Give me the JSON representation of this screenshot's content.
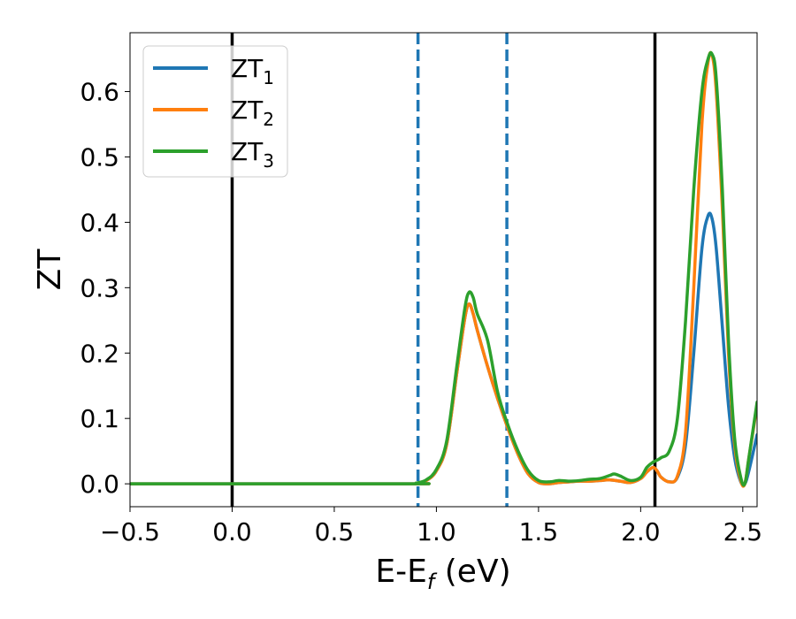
{
  "chart_data": {
    "type": "line",
    "xlabel": {
      "base": "E-E",
      "sub": "f",
      "suffix": " (eV)"
    },
    "ylabel": "ZT",
    "xlim": [
      -0.5,
      2.57
    ],
    "ylim": [
      -0.035,
      0.69
    ],
    "grid": false,
    "legend_position": "top-left",
    "x_ticks": [
      -0.5,
      0.0,
      0.5,
      1.0,
      1.5,
      2.0,
      2.5
    ],
    "x_tick_labels": [
      "−0.5",
      "0.0",
      "0.5",
      "1.0",
      "1.5",
      "2.0",
      "2.5"
    ],
    "y_ticks": [
      0.0,
      0.1,
      0.2,
      0.3,
      0.4,
      0.5,
      0.6
    ],
    "y_tick_labels": [
      "0.0",
      "0.1",
      "0.2",
      "0.3",
      "0.4",
      "0.5",
      "0.6"
    ],
    "vlines": [
      {
        "x": 0.0,
        "style": "solid",
        "color": "#000000"
      },
      {
        "x": 0.91,
        "style": "dashed",
        "color": "#1f77b4"
      },
      {
        "x": 1.345,
        "style": "dashed",
        "color": "#1f77b4"
      },
      {
        "x": 2.07,
        "style": "solid",
        "color": "#000000"
      }
    ],
    "series": [
      {
        "name": "ZT",
        "name_sub": "1",
        "color": "#1f77b4",
        "x": [
          -0.5,
          0.85,
          0.9,
          0.95,
          1.0,
          1.05,
          1.1,
          1.14,
          1.16,
          1.18,
          1.2,
          1.25,
          1.3,
          1.35,
          1.4,
          1.45,
          1.5,
          1.55,
          1.6,
          1.65,
          1.7,
          1.75,
          1.8,
          1.85,
          1.9,
          1.95,
          2.0,
          2.03,
          2.06,
          2.08,
          2.1,
          2.14,
          2.18,
          2.22,
          2.26,
          2.3,
          2.33,
          2.35,
          2.37,
          2.4,
          2.43,
          2.46,
          2.49,
          2.51,
          2.53,
          2.57
        ],
        "y": [
          0.0,
          0.0,
          0.001,
          0.005,
          0.02,
          0.06,
          0.17,
          0.255,
          0.275,
          0.26,
          0.235,
          0.18,
          0.13,
          0.085,
          0.045,
          0.015,
          0.002,
          0.0,
          0.002,
          0.003,
          0.004,
          0.004,
          0.005,
          0.006,
          0.004,
          0.002,
          0.008,
          0.018,
          0.025,
          0.02,
          0.01,
          0.003,
          0.01,
          0.06,
          0.2,
          0.36,
          0.41,
          0.405,
          0.36,
          0.24,
          0.12,
          0.04,
          0.003,
          0.0,
          0.02,
          0.075
        ]
      },
      {
        "name": "ZT",
        "name_sub": "2",
        "color": "#ff7f0e",
        "x": [
          -0.5,
          0.85,
          0.9,
          0.95,
          1.0,
          1.05,
          1.1,
          1.14,
          1.16,
          1.18,
          1.2,
          1.25,
          1.3,
          1.35,
          1.4,
          1.45,
          1.5,
          1.55,
          1.6,
          1.65,
          1.7,
          1.75,
          1.8,
          1.85,
          1.9,
          1.95,
          2.0,
          2.03,
          2.06,
          2.08,
          2.1,
          2.14,
          2.18,
          2.22,
          2.26,
          2.3,
          2.33,
          2.35,
          2.37,
          2.4,
          2.43,
          2.46,
          2.49,
          2.51,
          2.53,
          2.57
        ],
        "y": [
          0.0,
          0.0,
          0.001,
          0.005,
          0.02,
          0.06,
          0.17,
          0.255,
          0.275,
          0.26,
          0.235,
          0.18,
          0.13,
          0.085,
          0.045,
          0.015,
          0.002,
          0.0,
          0.002,
          0.003,
          0.004,
          0.004,
          0.005,
          0.006,
          0.004,
          0.002,
          0.008,
          0.018,
          0.025,
          0.02,
          0.01,
          0.003,
          0.012,
          0.08,
          0.3,
          0.55,
          0.645,
          0.655,
          0.6,
          0.42,
          0.2,
          0.06,
          0.005,
          0.0,
          0.04,
          0.12
        ]
      },
      {
        "name": "ZT",
        "name_sub": "3",
        "color": "#2ca02c",
        "x": [
          -0.5,
          0.85,
          0.9,
          0.95,
          1.0,
          1.05,
          1.1,
          1.14,
          1.16,
          1.18,
          1.2,
          1.25,
          1.3,
          1.35,
          1.4,
          1.45,
          1.5,
          1.55,
          1.6,
          1.65,
          1.7,
          1.75,
          1.8,
          1.85,
          1.87,
          1.9,
          1.95,
          2.0,
          2.03,
          2.06,
          2.08,
          2.1,
          2.14,
          2.18,
          2.22,
          2.26,
          2.3,
          2.33,
          2.35,
          2.37,
          2.4,
          2.43,
          2.46,
          2.49,
          2.51,
          2.53,
          2.57
        ],
        "y": [
          0.0,
          0.0,
          0.001,
          0.006,
          0.022,
          0.065,
          0.18,
          0.27,
          0.293,
          0.285,
          0.26,
          0.22,
          0.14,
          0.09,
          0.05,
          0.02,
          0.005,
          0.003,
          0.005,
          0.004,
          0.005,
          0.007,
          0.008,
          0.013,
          0.015,
          0.012,
          0.005,
          0.01,
          0.025,
          0.033,
          0.036,
          0.04,
          0.05,
          0.1,
          0.25,
          0.45,
          0.6,
          0.65,
          0.657,
          0.62,
          0.45,
          0.22,
          0.07,
          0.01,
          0.0,
          0.04,
          0.125
        ]
      }
    ]
  }
}
